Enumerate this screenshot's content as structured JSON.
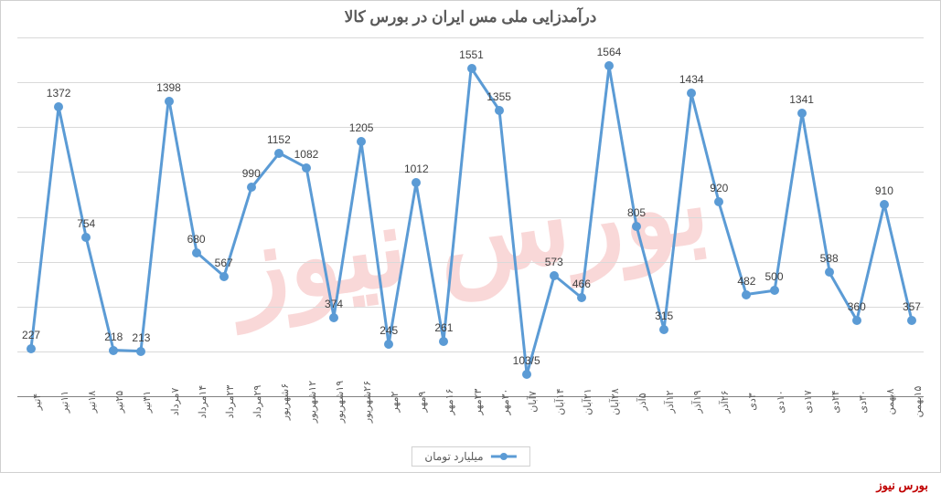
{
  "chart": {
    "type": "line",
    "title": "درآمدزایی ملی مس ایران در بورس کالا",
    "title_fontsize": 17,
    "title_color": "#595959",
    "background_color": "#ffffff",
    "grid_color": "#d9d9d9",
    "axis_color": "#808080",
    "line_color": "#5b9bd5",
    "line_width": 3,
    "marker_color": "#5b9bd5",
    "marker_size": 10,
    "data_label_fontsize": 12,
    "data_label_color": "#404040",
    "x_label_fontsize": 11,
    "x_label_color": "#595959",
    "x_label_rotation": -90,
    "ylim": [
      0,
      1700
    ],
    "gridline_count": 9,
    "categories": [
      "۴تیر",
      "۱۱تیر",
      "۱۸تیر",
      "۲۵تیر",
      "۳۱تیر",
      "۷مرداد",
      "۱۴مرداد",
      "۲۳مرداد",
      "۲۹مرداد",
      "۶شهریور",
      "۱۲شهریور",
      "۱۹شهریور",
      "۲۶شهریور",
      "۲مهر",
      "۹مهر",
      "۱۶مهر",
      "۲۳مهر",
      "۳۰مهر",
      "۷آبان",
      "۱۴آبان",
      "۲۱آبان",
      "۲۸آبان",
      "۵آذر",
      "۱۲آذر",
      "۱۹آذر",
      "۲۶آذر",
      "۳دی",
      "۱۰دی",
      "۱۷دی",
      "۲۴دی",
      "۳۰دی",
      "۸بهمن",
      "۱۵بهمن"
    ],
    "values": [
      227,
      1372,
      754,
      218,
      213,
      1398,
      680,
      567,
      990,
      1152,
      1082,
      374,
      1205,
      245,
      1012,
      261,
      1551,
      1355,
      103.5,
      573,
      466,
      1564,
      805,
      315,
      1434,
      920,
      482,
      500,
      1341,
      588,
      360,
      910,
      357
    ],
    "value_labels": [
      "227",
      "1372",
      "754",
      "218",
      "213",
      "1398",
      "680",
      "567",
      "990",
      "1152",
      "1082",
      "374",
      "1205",
      "245",
      "1012",
      "261",
      "1551",
      "1355",
      "103/5",
      "573",
      "466",
      "1564",
      "805",
      "315",
      "1434",
      "920",
      "482",
      "500",
      "1341",
      "588",
      "360",
      "910",
      "357"
    ],
    "legend_label": "میلیارد تومان",
    "watermark_text": "بورس نیوز",
    "watermark_color": "#e03030",
    "watermark_opacity": 0.18,
    "source_text": "بورس نیوز",
    "source_color": "#c00000"
  }
}
